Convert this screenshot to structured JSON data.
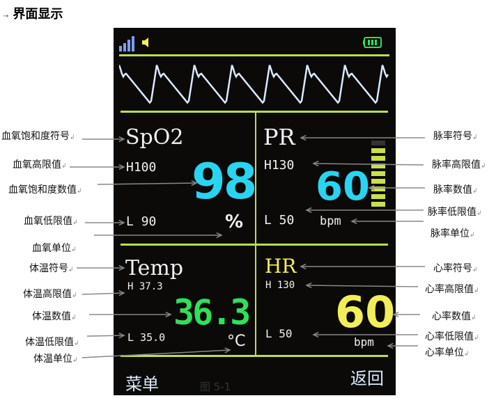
{
  "heading": {
    "marker": "→",
    "title": "界面显示"
  },
  "screen": {
    "colors": {
      "line": "#b9e04a",
      "wave": "#dbe9ff",
      "spo2": "#29d4f0",
      "temp": "#2ee05a",
      "hr": "#f2ee5a",
      "text": "#f2f2f2"
    },
    "status": {
      "signal_icon": "signal-bars-icon",
      "sound_icon": "speaker-icon",
      "battery_icon": "battery-icon"
    },
    "spo2": {
      "symbol": "SpO2",
      "high": "H100",
      "value": "98",
      "low": "L 90",
      "unit": "%"
    },
    "pr": {
      "symbol": "PR",
      "high": "H130",
      "value": "60",
      "low": "L 50",
      "unit": "bpm",
      "bar_level": 0.9
    },
    "temp": {
      "symbol": "Temp",
      "high": "H 37.3",
      "value": "36.3",
      "low": "L 35.0",
      "unit": "°C"
    },
    "hr": {
      "symbol": "HR",
      "high": "H 130",
      "value": "60",
      "low": "L 50",
      "unit": "bpm"
    },
    "menu": "菜单",
    "back": "返回"
  },
  "caption": "图 5-1",
  "labels_left": [
    "血氧饱和度符号",
    "血氧高限值",
    "血氧饱和度数值",
    "血氧低限值",
    "血氧单位",
    "体温符号",
    "体温高限值",
    "体温数值",
    "体温低限值",
    "体温单位"
  ],
  "labels_right": [
    "脉率符号",
    "脉率高限值",
    "脉率数值",
    "脉率低限值",
    "脉率单位",
    "心率符号",
    "心率高限值",
    "心率数值",
    "心率低限值",
    "心率单位"
  ]
}
